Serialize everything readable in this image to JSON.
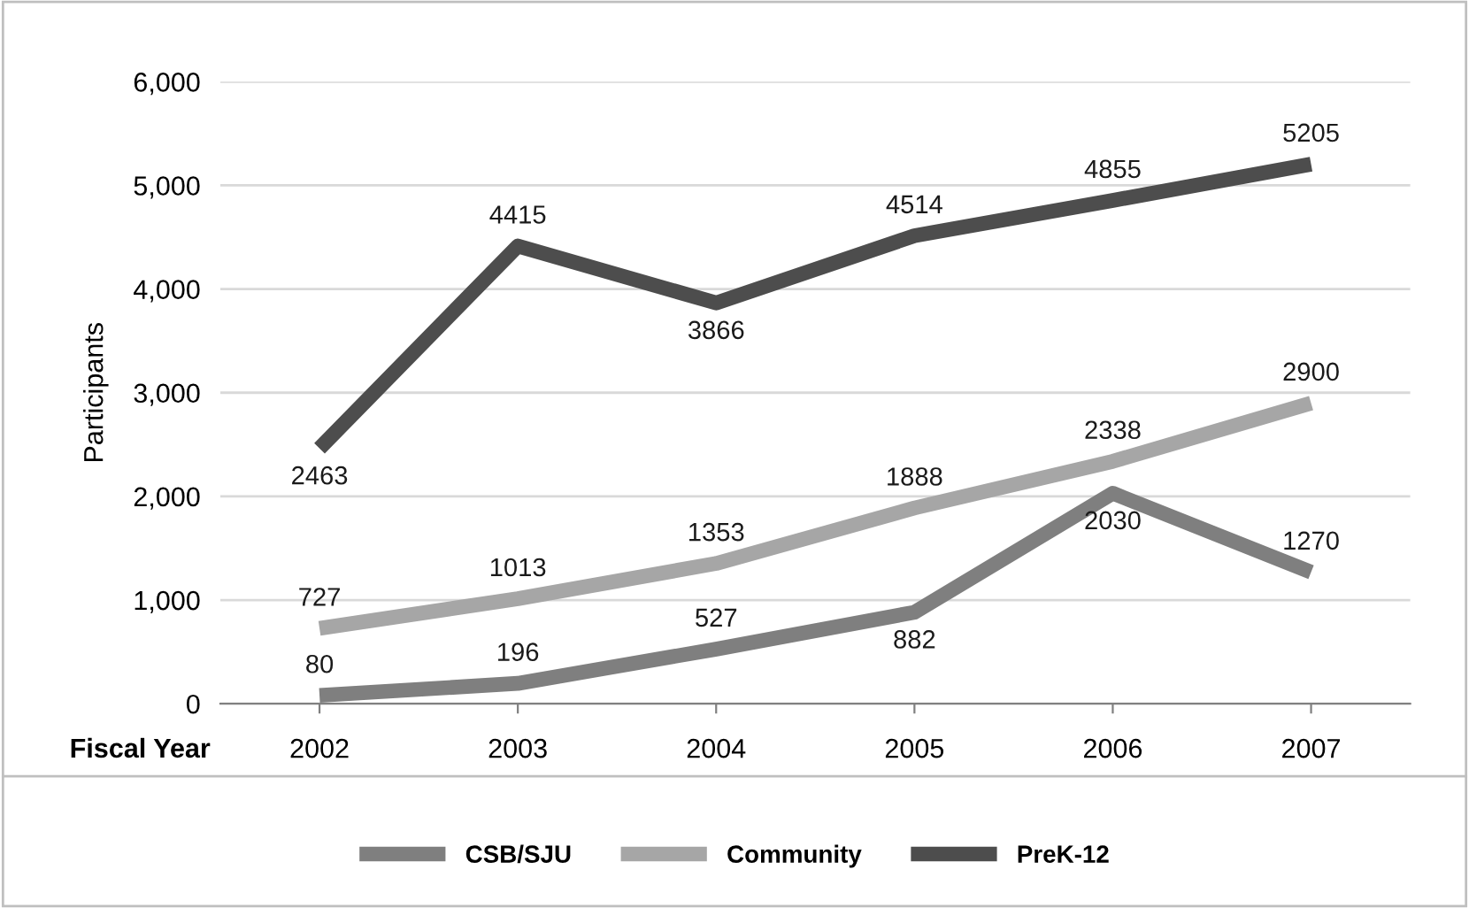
{
  "chart_data": {
    "type": "line",
    "xlabel": "Fiscal Year",
    "ylabel": "Participants",
    "categories": [
      "2002",
      "2003",
      "2004",
      "2005",
      "2006",
      "2007"
    ],
    "series": [
      {
        "name": "CSB/SJU",
        "color": "#7f7f7f",
        "values": [
          80,
          196,
          527,
          882,
          2030,
          1270
        ]
      },
      {
        "name": "Community",
        "color": "#a6a6a6",
        "values": [
          727,
          1013,
          1353,
          1888,
          2338,
          2900
        ]
      },
      {
        "name": "PreK-12",
        "color": "#4d4d4d",
        "values": [
          2463,
          4415,
          3866,
          4514,
          4855,
          5205
        ]
      }
    ],
    "ylim": [
      0,
      6000
    ],
    "yticks": [
      {
        "value": 0,
        "label": "0"
      },
      {
        "value": 1000,
        "label": "1,000"
      },
      {
        "value": 2000,
        "label": "2,000"
      },
      {
        "value": 3000,
        "label": "3,000"
      },
      {
        "value": 4000,
        "label": "4,000"
      },
      {
        "value": 5000,
        "label": "5,000"
      },
      {
        "value": 6000,
        "label": "6,000"
      }
    ],
    "grid": "y",
    "legend": "bottom",
    "marker": "none",
    "line_style": "solid",
    "data_labels": true
  }
}
